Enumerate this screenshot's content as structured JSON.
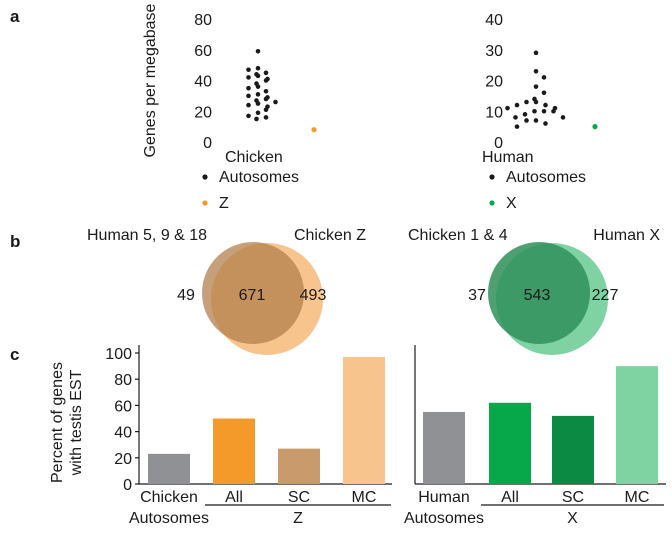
{
  "panels": {
    "a": "a",
    "b": "b",
    "c": "c"
  },
  "colors": {
    "orange": "#f39a2a",
    "orange_light": "#f8c48d",
    "tan": "#c89a6c",
    "tan_light": "#cdb89b",
    "gray": "#8f9194",
    "green": "#07a84a",
    "green_dark": "#0b8a43",
    "green_light": "#7fd3a2",
    "venn_green_left": "#4b8f68",
    "dot": "#1a1a1a"
  },
  "chart_data": [
    {
      "type": "scatter",
      "panel": "a",
      "ylabel": "Genes per megabase",
      "ylim": [
        0,
        80
      ],
      "yticks": [
        0,
        20,
        40,
        60,
        80
      ],
      "ytick_labels": [
        "0",
        "20",
        "40",
        "60",
        "80"
      ],
      "group_label": "Chicken",
      "legend": [
        {
          "label": "Autosomes",
          "color": "#1a1a1a"
        },
        {
          "label": "Z",
          "color": "#f39a2a"
        }
      ],
      "series": [
        {
          "name": "Autosomes",
          "values": [
            59,
            48,
            47,
            45,
            44,
            43,
            42,
            41,
            40,
            38,
            36,
            35,
            33,
            31,
            30,
            29,
            28,
            27,
            26,
            25,
            24,
            23,
            21,
            19,
            17,
            16,
            15
          ]
        },
        {
          "name": "Z",
          "values": [
            8
          ]
        }
      ]
    },
    {
      "type": "scatter",
      "panel": "a",
      "ylim": [
        0,
        40
      ],
      "yticks": [
        0,
        10,
        20,
        30,
        40
      ],
      "ytick_labels": [
        "0",
        "10",
        "20",
        "30",
        "40"
      ],
      "group_label": "Human",
      "legend": [
        {
          "label": "Autosomes",
          "color": "#1a1a1a"
        },
        {
          "label": "X",
          "color": "#07a84a"
        }
      ],
      "series": [
        {
          "name": "Autosomes",
          "values": [
            29,
            23,
            21,
            18,
            16,
            14,
            13,
            13,
            12,
            12,
            11,
            11,
            10,
            10,
            10,
            9,
            8,
            8,
            7,
            7,
            6,
            5
          ]
        },
        {
          "name": "X",
          "values": [
            5
          ]
        }
      ]
    },
    {
      "type": "venn",
      "panel": "b",
      "sets": [
        "Human 5, 9 & 18",
        "Chicken Z"
      ],
      "values": {
        "left_only": 49,
        "both": 671,
        "right_only": 493
      }
    },
    {
      "type": "venn",
      "panel": "b",
      "sets": [
        "Chicken 1 & 4",
        "Human X"
      ],
      "values": {
        "left_only": 37,
        "both": 543,
        "right_only": 227
      }
    },
    {
      "type": "bar",
      "panel": "c",
      "ylabel": "Percent of genes with testis EST",
      "ylabel_lines": [
        "Percent of genes",
        "with testis EST"
      ],
      "ylim": [
        0,
        100
      ],
      "yticks": [
        0,
        20,
        40,
        60,
        80,
        100
      ],
      "ytick_labels": [
        "0",
        "20",
        "40",
        "60",
        "80",
        "100"
      ],
      "categories": [
        "Chicken Autosomes",
        "All",
        "SC",
        "MC"
      ],
      "category_lines": [
        [
          "Chicken",
          "Autosomes"
        ],
        [
          "All"
        ],
        [
          "SC"
        ],
        [
          "MC"
        ]
      ],
      "group_label": "Z",
      "values": [
        23,
        50,
        27,
        97
      ],
      "colors": [
        "#8f9194",
        "#f39a2a",
        "#c89a6c",
        "#f8c48d"
      ]
    },
    {
      "type": "bar",
      "panel": "c",
      "ylim": [
        0,
        100
      ],
      "categories": [
        "Human Autosomes",
        "All",
        "SC",
        "MC"
      ],
      "category_lines": [
        [
          "Human",
          "Autosomes"
        ],
        [
          "All"
        ],
        [
          "SC"
        ],
        [
          "MC"
        ]
      ],
      "group_label": "X",
      "values": [
        55,
        62,
        52,
        90
      ],
      "colors": [
        "#8f9194",
        "#07a84a",
        "#0b8a43",
        "#7fd3a2"
      ]
    }
  ]
}
